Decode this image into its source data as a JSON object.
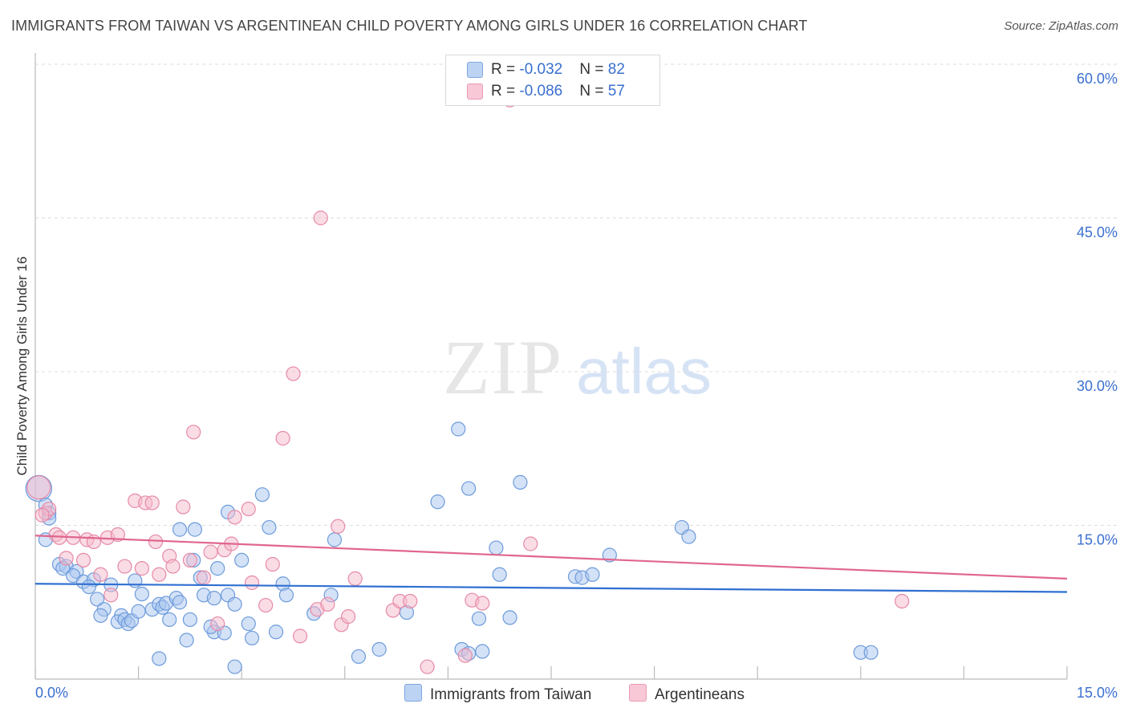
{
  "title": "IMMIGRANTS FROM TAIWAN VS ARGENTINEAN CHILD POVERTY AMONG GIRLS UNDER 16 CORRELATION CHART",
  "source": "Source: ZipAtlas.com",
  "watermark": {
    "zip": "ZIP",
    "atlas": "atlas"
  },
  "legend": {
    "rows": [
      {
        "r_label": "R = ",
        "r_value": "-0.032",
        "n_label": "N = ",
        "n_value": "82"
      },
      {
        "r_label": "R = ",
        "r_value": "-0.086",
        "n_label": "N = ",
        "n_value": "57"
      }
    ]
  },
  "bottom_legend": [
    "Immigrants from Taiwan",
    "Argentineans"
  ],
  "colors": {
    "taiwan_fill": "#a9c6f0",
    "taiwan_stroke": "#6d9bdb",
    "taiwan_line": "#2f6fd1",
    "argentina_fill": "#f5b9cb",
    "argentina_stroke": "#e68aa8",
    "argentina_line": "#e0668f",
    "grid": "#dddddd",
    "axis_text": "#3a6fcf"
  },
  "chart_data": {
    "type": "scatter",
    "title": "IMMIGRANTS FROM TAIWAN VS ARGENTINEAN CHILD POVERTY AMONG GIRLS UNDER 16 CORRELATION CHART",
    "xlabel": "",
    "ylabel": "Child Poverty Among Girls Under 16",
    "xlim": [
      0,
      15
    ],
    "ylim": [
      0,
      60
    ],
    "x_tick_labels": [
      "0.0%",
      "15.0%"
    ],
    "y_tick_labels": [
      "15.0%",
      "30.0%",
      "45.0%",
      "60.0%"
    ],
    "y_ticks": [
      15,
      30,
      45,
      60
    ],
    "grid": true,
    "legend_placement": "top-center",
    "series": [
      {
        "name": "Immigrants from Taiwan",
        "R": -0.032,
        "N": 82,
        "trend": {
          "x": [
            0,
            15
          ],
          "y": [
            9.3,
            8.5
          ]
        },
        "points": [
          [
            0.05,
            18.6,
            1.9
          ],
          [
            0.15,
            17.0,
            1
          ],
          [
            0.2,
            16.2,
            1
          ],
          [
            0.2,
            15.7,
            1
          ],
          [
            0.15,
            13.6,
            1
          ],
          [
            0.35,
            11.2,
            1
          ],
          [
            0.45,
            11.0,
            1
          ],
          [
            0.4,
            10.8,
            1
          ],
          [
            0.6,
            10.5,
            1
          ],
          [
            0.55,
            10.1,
            1
          ],
          [
            0.7,
            9.5,
            1
          ],
          [
            0.85,
            9.7,
            1
          ],
          [
            0.78,
            9.0,
            1
          ],
          [
            1.1,
            9.2,
            1
          ],
          [
            1.45,
            9.6,
            1
          ],
          [
            0.9,
            7.8,
            1
          ],
          [
            1.0,
            6.8,
            1
          ],
          [
            0.95,
            6.2,
            1
          ],
          [
            1.25,
            6.2,
            1
          ],
          [
            1.2,
            5.6,
            1
          ],
          [
            1.3,
            5.8,
            1
          ],
          [
            1.35,
            5.4,
            1
          ],
          [
            1.4,
            5.7,
            1
          ],
          [
            1.55,
            8.3,
            1
          ],
          [
            1.7,
            6.8,
            1
          ],
          [
            1.5,
            6.6,
            1
          ],
          [
            1.8,
            7.3,
            1
          ],
          [
            1.85,
            7.0,
            1
          ],
          [
            1.9,
            7.4,
            1
          ],
          [
            1.95,
            5.8,
            1
          ],
          [
            1.8,
            2.0,
            1
          ],
          [
            2.05,
            7.9,
            1
          ],
          [
            2.1,
            14.6,
            1
          ],
          [
            2.25,
            5.8,
            1
          ],
          [
            2.2,
            3.8,
            1
          ],
          [
            2.3,
            11.6,
            1
          ],
          [
            2.32,
            14.6,
            1
          ],
          [
            2.4,
            9.9,
            1
          ],
          [
            2.45,
            8.2,
            1
          ],
          [
            2.6,
            4.6,
            1
          ],
          [
            2.55,
            5.1,
            1
          ],
          [
            2.6,
            7.9,
            1
          ],
          [
            2.65,
            10.8,
            1
          ],
          [
            2.75,
            4.5,
            1
          ],
          [
            2.8,
            8.2,
            1
          ],
          [
            2.8,
            16.3,
            1
          ],
          [
            2.9,
            7.3,
            1
          ],
          [
            3.0,
            11.6,
            1
          ],
          [
            3.1,
            5.4,
            1
          ],
          [
            3.15,
            4.0,
            1
          ],
          [
            2.9,
            1.2,
            1
          ],
          [
            3.3,
            18.0,
            1
          ],
          [
            3.4,
            14.8,
            1
          ],
          [
            3.5,
            4.6,
            1
          ],
          [
            3.6,
            9.3,
            1
          ],
          [
            3.65,
            8.2,
            1
          ],
          [
            4.05,
            6.4,
            1
          ],
          [
            4.3,
            8.2,
            1
          ],
          [
            4.35,
            13.6,
            1
          ],
          [
            4.7,
            2.2,
            1
          ],
          [
            5.0,
            2.9,
            1
          ],
          [
            5.4,
            6.5,
            1
          ],
          [
            5.85,
            17.3,
            1
          ],
          [
            6.15,
            24.4,
            1
          ],
          [
            6.3,
            18.6,
            1
          ],
          [
            6.2,
            2.9,
            1
          ],
          [
            6.3,
            2.5,
            1
          ],
          [
            6.45,
            5.9,
            1
          ],
          [
            6.5,
            2.7,
            1
          ],
          [
            6.7,
            12.8,
            1
          ],
          [
            6.75,
            10.2,
            1
          ],
          [
            6.9,
            6.0,
            1
          ],
          [
            7.05,
            19.2,
            1
          ],
          [
            7.85,
            10.0,
            1
          ],
          [
            7.95,
            9.9,
            1
          ],
          [
            8.1,
            10.2,
            1
          ],
          [
            8.35,
            12.1,
            1
          ],
          [
            9.4,
            14.8,
            1
          ],
          [
            9.5,
            13.9,
            1
          ],
          [
            12.0,
            2.6,
            1
          ],
          [
            12.15,
            2.6,
            1
          ],
          [
            2.1,
            7.5,
            1
          ]
        ]
      },
      {
        "name": "Argentineans",
        "R": -0.086,
        "N": 57,
        "trend": {
          "x": [
            0,
            15
          ],
          "y": [
            14.0,
            9.8
          ]
        },
        "points": [
          [
            0.05,
            18.7,
            1.7
          ],
          [
            0.15,
            16.2,
            1
          ],
          [
            0.2,
            16.6,
            1
          ],
          [
            0.3,
            14.1,
            1
          ],
          [
            0.35,
            13.8,
            1
          ],
          [
            0.45,
            11.8,
            1
          ],
          [
            0.55,
            13.8,
            1
          ],
          [
            0.7,
            11.6,
            1
          ],
          [
            0.75,
            13.6,
            1
          ],
          [
            0.85,
            13.4,
            1
          ],
          [
            0.95,
            10.2,
            1
          ],
          [
            1.05,
            13.8,
            1
          ],
          [
            1.1,
            8.2,
            1
          ],
          [
            1.2,
            14.1,
            1
          ],
          [
            1.3,
            11.0,
            1
          ],
          [
            1.45,
            17.4,
            1
          ],
          [
            1.55,
            10.8,
            1
          ],
          [
            1.6,
            17.2,
            1
          ],
          [
            1.7,
            17.2,
            1
          ],
          [
            1.75,
            13.4,
            1
          ],
          [
            1.8,
            10.2,
            1
          ],
          [
            1.95,
            12.0,
            1
          ],
          [
            2.0,
            11.0,
            1
          ],
          [
            2.15,
            16.8,
            1
          ],
          [
            2.25,
            11.6,
            1
          ],
          [
            2.3,
            24.1,
            1
          ],
          [
            2.45,
            9.9,
            1
          ],
          [
            2.55,
            12.4,
            1
          ],
          [
            2.65,
            5.4,
            1
          ],
          [
            2.75,
            12.6,
            1
          ],
          [
            2.85,
            13.2,
            1
          ],
          [
            2.9,
            15.8,
            1
          ],
          [
            3.1,
            16.6,
            1
          ],
          [
            3.15,
            9.4,
            1
          ],
          [
            3.35,
            7.2,
            1
          ],
          [
            3.45,
            11.2,
            1
          ],
          [
            3.6,
            23.5,
            1
          ],
          [
            3.75,
            29.8,
            1
          ],
          [
            3.85,
            4.2,
            1
          ],
          [
            4.1,
            6.8,
            1
          ],
          [
            4.15,
            45.0,
            1
          ],
          [
            4.25,
            7.3,
            1
          ],
          [
            4.4,
            14.9,
            1
          ],
          [
            4.45,
            5.3,
            1
          ],
          [
            4.55,
            6.1,
            1
          ],
          [
            4.65,
            9.8,
            1
          ],
          [
            5.2,
            6.7,
            1
          ],
          [
            5.3,
            7.6,
            1
          ],
          [
            5.45,
            7.6,
            1
          ],
          [
            5.7,
            1.2,
            1
          ],
          [
            6.25,
            2.3,
            1
          ],
          [
            6.35,
            7.7,
            1
          ],
          [
            6.5,
            7.4,
            1
          ],
          [
            6.9,
            56.5,
            1
          ],
          [
            7.2,
            13.2,
            1
          ],
          [
            12.6,
            7.6,
            1
          ],
          [
            0.1,
            16.0,
            1
          ]
        ]
      }
    ]
  }
}
